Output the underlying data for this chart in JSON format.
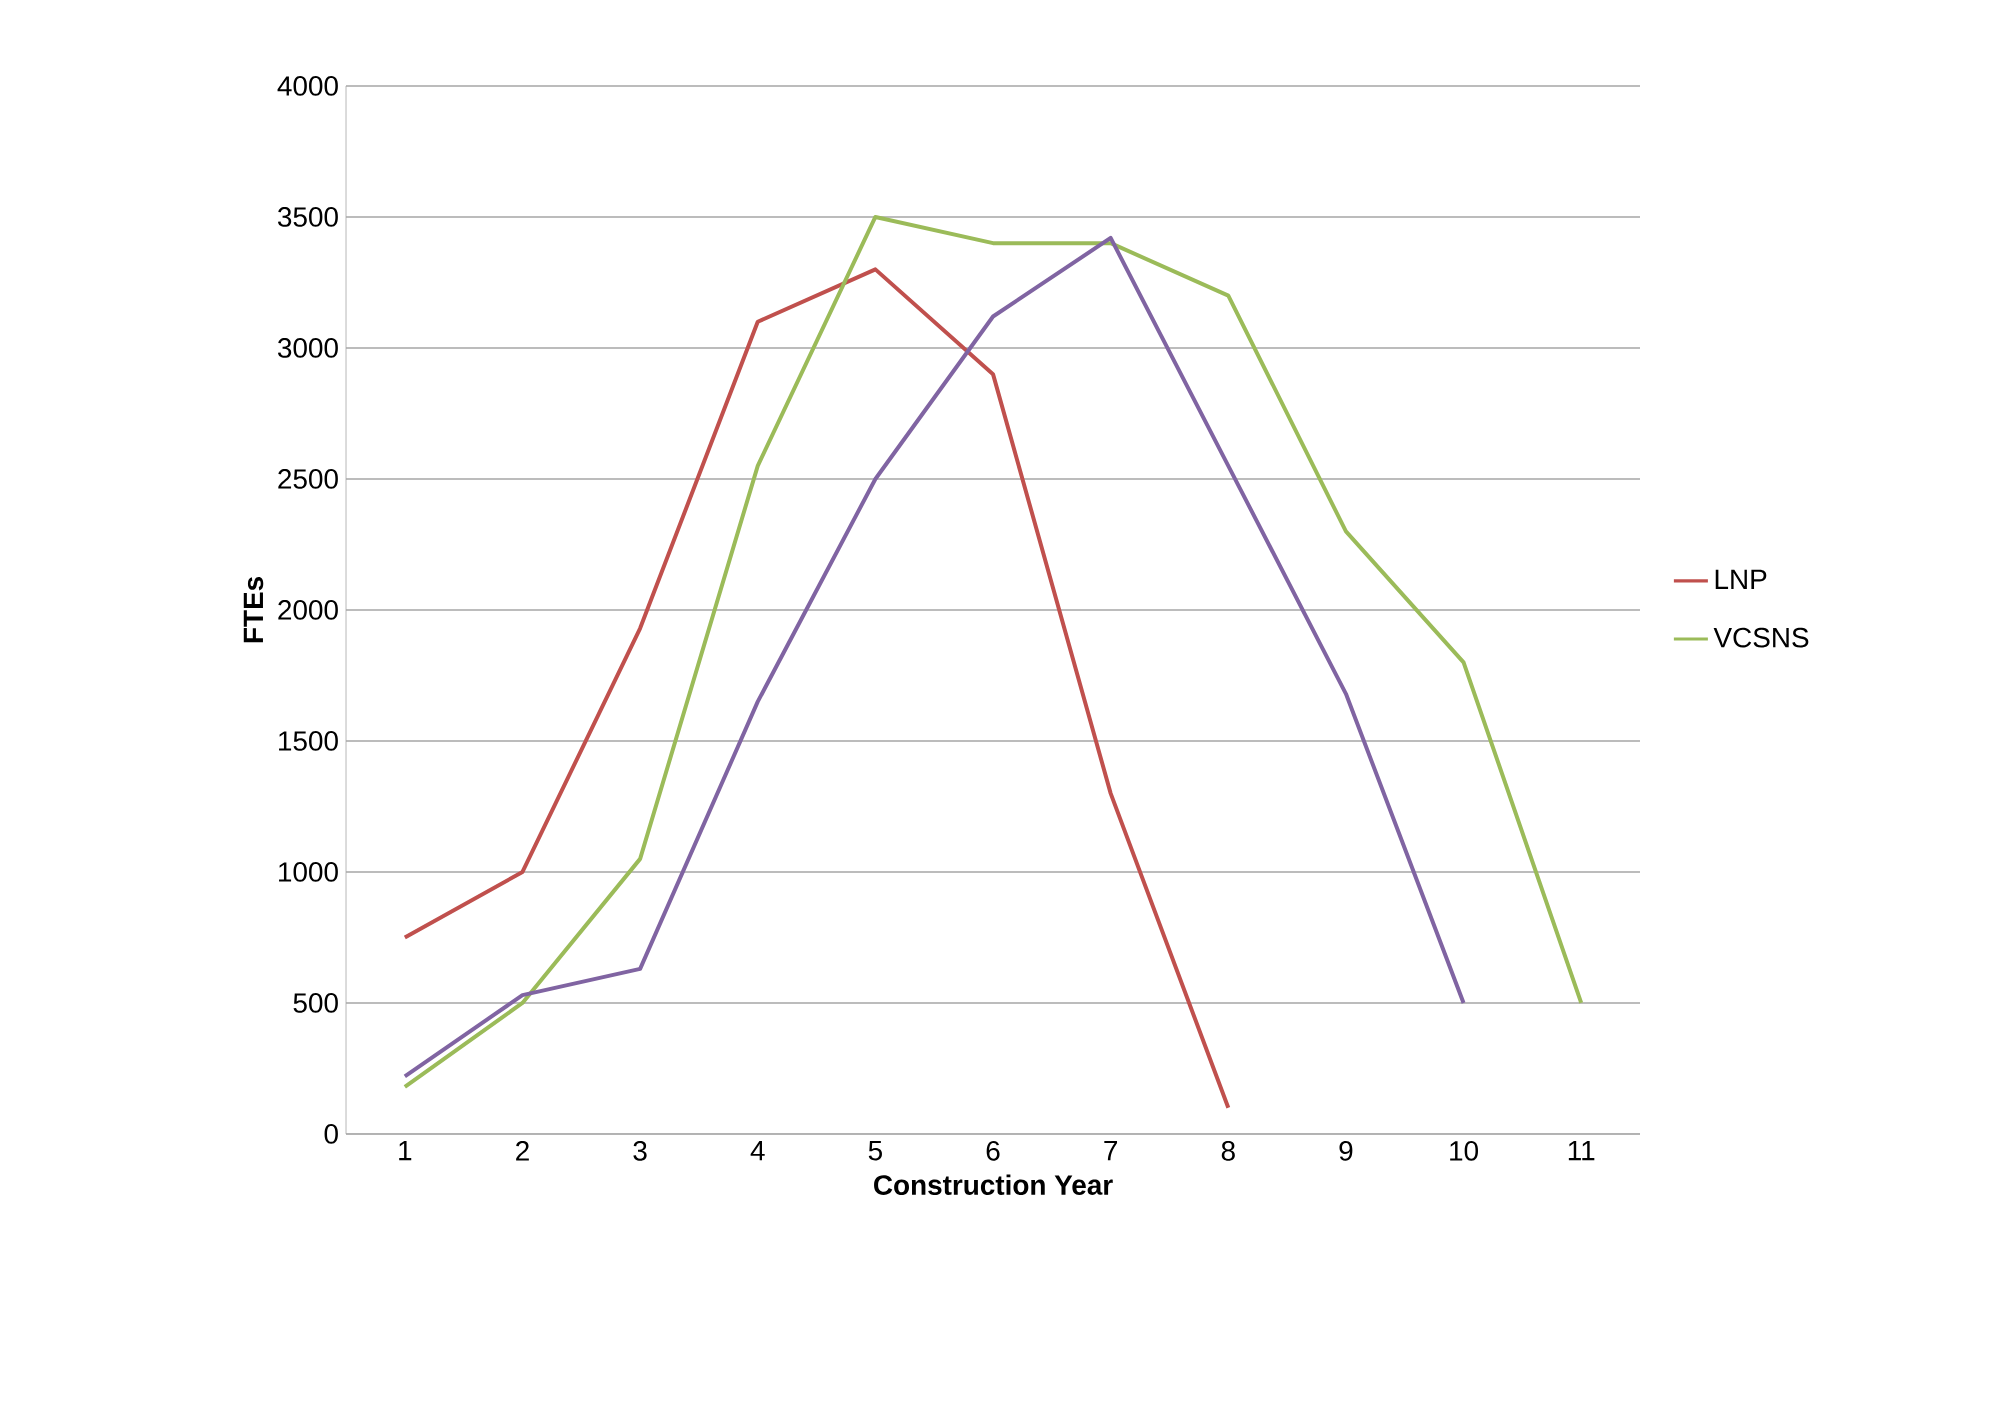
{
  "chart_data": {
    "type": "line",
    "xlabel": "Construction Year",
    "ylabel": "FTEs",
    "categories": [
      "1",
      "2",
      "3",
      "4",
      "5",
      "6",
      "7",
      "8",
      "9",
      "10",
      "11"
    ],
    "series": [
      {
        "name": "LNP",
        "color": "#c0504d",
        "values": [
          750,
          1000,
          1930,
          3100,
          3300,
          2900,
          1300,
          100,
          null,
          null,
          null
        ]
      },
      {
        "name": "VCSNS",
        "color": "#9bbb59",
        "values": [
          180,
          500,
          1050,
          2550,
          3500,
          3400,
          3400,
          3200,
          2300,
          1800,
          500
        ]
      },
      {
        "color": "#8064a2",
        "values": [
          220,
          530,
          630,
          1650,
          2500,
          3120,
          3420,
          2550,
          1680,
          500,
          null
        ]
      }
    ],
    "ylim": [
      0,
      4000
    ],
    "yticks": [
      0,
      500,
      1000,
      1500,
      2000,
      2500,
      3000,
      3500,
      4000
    ],
    "grid": "y",
    "legend": "right",
    "marker": "none",
    "line_style": "solid"
  }
}
